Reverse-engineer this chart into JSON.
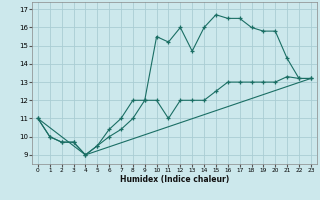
{
  "title": "",
  "xlabel": "Humidex (Indice chaleur)",
  "background_color": "#cce8ec",
  "line_color": "#1a6e64",
  "grid_color": "#aacdd4",
  "xlim": [
    -0.5,
    23.5
  ],
  "ylim": [
    8.5,
    17.4
  ],
  "xticks": [
    0,
    1,
    2,
    3,
    4,
    5,
    6,
    7,
    8,
    9,
    10,
    11,
    12,
    13,
    14,
    15,
    16,
    17,
    18,
    19,
    20,
    21,
    22,
    23
  ],
  "yticks": [
    9,
    10,
    11,
    12,
    13,
    14,
    15,
    16,
    17
  ],
  "series": [
    {
      "x": [
        0,
        1,
        2,
        3,
        4,
        5,
        6,
        7,
        8,
        9,
        10,
        11,
        12,
        13,
        14,
        15,
        16,
        17,
        18,
        19,
        20,
        21,
        22,
        23
      ],
      "y": [
        11,
        10,
        9.7,
        9.7,
        9,
        9.5,
        10,
        10.4,
        11,
        12,
        12,
        11,
        12,
        12,
        12,
        12.5,
        13,
        13,
        13,
        13,
        13,
        13.3,
        13.2,
        13.2
      ],
      "marker": true
    },
    {
      "x": [
        0,
        1,
        2,
        3,
        4,
        5,
        6,
        7,
        8,
        9,
        10,
        11,
        12,
        13,
        14,
        15,
        16,
        17,
        18,
        19,
        20,
        21,
        22,
        23
      ],
      "y": [
        11,
        10,
        9.7,
        9.7,
        9,
        9.5,
        10.4,
        11,
        12,
        12,
        15.5,
        15.2,
        16,
        14.7,
        16,
        16.7,
        16.5,
        16.5,
        16,
        15.8,
        15.8,
        14.3,
        13.2,
        13.2
      ],
      "marker": true
    },
    {
      "x": [
        0,
        4,
        23
      ],
      "y": [
        11,
        9,
        13.2
      ],
      "marker": false
    }
  ]
}
